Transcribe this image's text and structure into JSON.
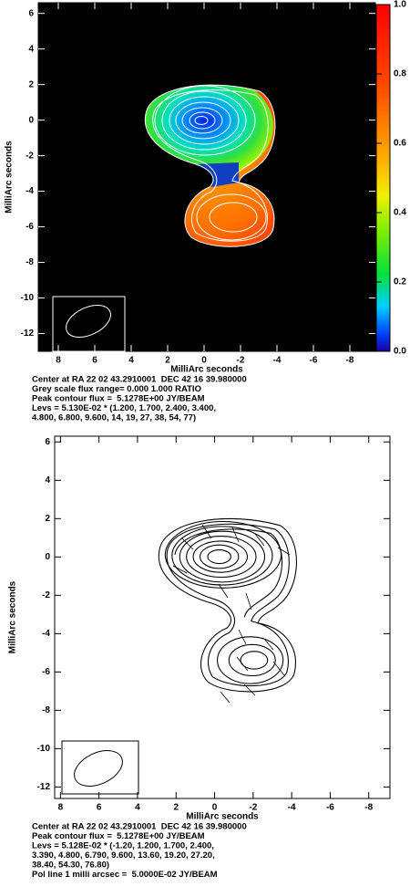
{
  "chart_data": [
    {
      "type": "contour",
      "xlabel": "MilliArc seconds",
      "ylabel": "MilliArc seconds",
      "xlim": [
        9.1,
        -9.4
      ],
      "ylim": [
        -13,
        6.6
      ],
      "xticks": [
        8,
        6,
        4,
        2,
        0,
        -2,
        -4,
        -6,
        -8
      ],
      "yticks": [
        -12,
        -10,
        -8,
        -6,
        -4,
        -2,
        0,
        2,
        4,
        6
      ],
      "colorbar_lim": [
        0,
        1
      ],
      "colorbar_ticks": [
        {
          "value": 0,
          "label": "0.0"
        },
        {
          "value": 0.2,
          "label": "0.2"
        },
        {
          "value": 0.4,
          "label": "0.4"
        },
        {
          "value": 0.6,
          "label": "0.6"
        },
        {
          "value": 0.8,
          "label": "0.8"
        },
        {
          "value": 1,
          "label": "1.0"
        }
      ],
      "caption": [
        "Center at RA 22 02 43.2910001  DEC 42 16 39.980000",
        "Grey scale flux range= 0.000 1.000 RATIO",
        "Peak contour flux =  5.1278E+00 JY/BEAM",
        "Levs = 5.130E-02 * (1.200, 1.700, 2.400, 3.400,",
        "4.800, 6.800, 9.600, 14, 19, 27, 38, 54, 77)"
      ]
    },
    {
      "type": "contour",
      "xlabel": "MilliArc seconds",
      "ylabel": "MilliArc seconds",
      "xlim": [
        8.3,
        -9.1
      ],
      "ylim": [
        -12.6,
        6.3
      ],
      "xticks": [
        8,
        6,
        4,
        2,
        0,
        -2,
        -4,
        -6,
        -8
      ],
      "yticks": [
        -12,
        -10,
        -8,
        -6,
        -4,
        -2,
        0,
        2,
        4,
        6
      ],
      "caption": [
        "Center at RA 22 02 43.2910001  DEC 42 16 39.980000",
        "Peak contour flux =  5.1278E+00 JY/BEAM",
        "Levs = 5.128E-02 * (-1.20, 1.200, 1.700, 2.400,",
        "3.390, 4.800, 6.790, 9.600, 13.60, 19.20, 27.20,",
        "38.40, 54.30, 76.80)",
        "Pol line 1 milli arcsec =  5.0000E-02 JY/BEAM"
      ]
    }
  ]
}
